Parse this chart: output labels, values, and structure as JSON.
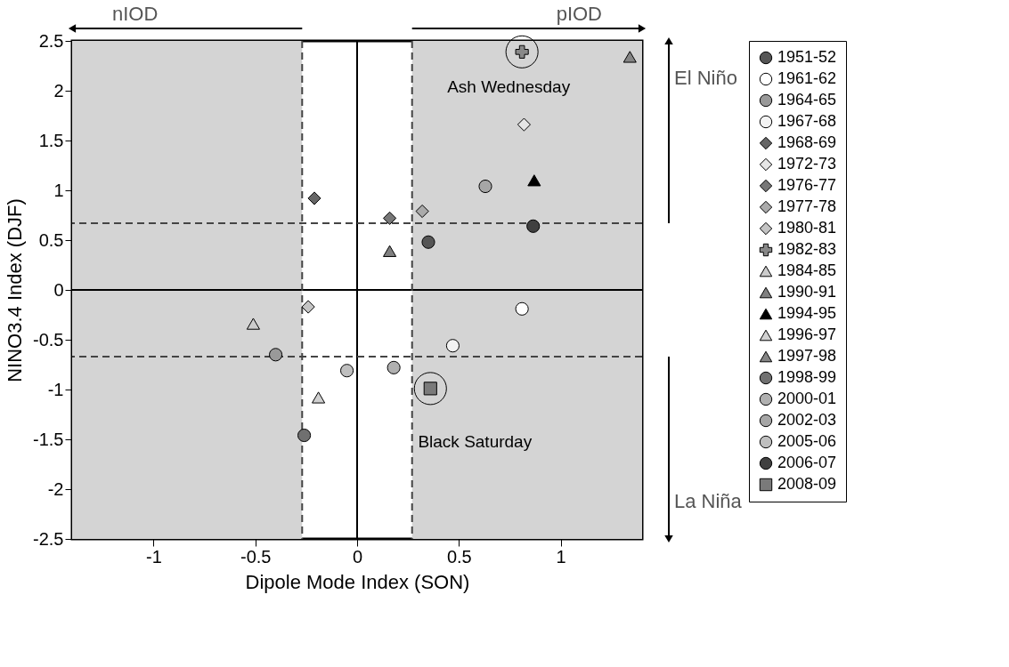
{
  "chart_data": {
    "type": "scatter",
    "xlabel": "Dipole Mode Index (SON)",
    "ylabel": "NINO3.4 Index (DJF)",
    "xlim": [
      -1.4,
      1.4
    ],
    "xticks": [
      -1,
      -0.5,
      0,
      0.5,
      1
    ],
    "ylim": [
      -2.5,
      2.5
    ],
    "yticks": [
      -2.5,
      -2,
      -1.5,
      -1,
      -0.5,
      0,
      0.5,
      1,
      1.5,
      2,
      2.5
    ],
    "grid": false,
    "legend": "right",
    "bands": [
      {
        "axis": "x",
        "from": -1.4,
        "to": -0.27,
        "color": "#d4d4d4"
      },
      {
        "axis": "x",
        "from": 0.27,
        "to": 1.4,
        "color": "#d4d4d4"
      }
    ],
    "ref_lines": [
      {
        "axis": "x",
        "value": 0,
        "color": "#000000",
        "line_style": "solid"
      },
      {
        "axis": "y",
        "value": 0,
        "color": "#000000",
        "line_style": "solid"
      },
      {
        "axis": "x",
        "value": -0.27,
        "color": "#444444",
        "line_style": "dashed"
      },
      {
        "axis": "x",
        "value": 0.27,
        "color": "#444444",
        "line_style": "dashed"
      },
      {
        "axis": "y",
        "value": 0.67,
        "color": "#444444",
        "line_style": "dashed"
      },
      {
        "axis": "y",
        "value": -0.67,
        "color": "#444444",
        "line_style": "dashed"
      }
    ],
    "annotations": [
      "nIOD",
      "pIOD",
      "El Niño",
      "La Niña",
      {
        "text": "Ash Wednesday",
        "x": 0.81,
        "y": 2.39
      },
      {
        "text": "Black Saturday",
        "x": 0.36,
        "y": -0.99
      }
    ],
    "series": [
      {
        "name": "1951-52",
        "color": "#555555",
        "marker": "circle",
        "x": [
          0.35
        ],
        "values": [
          0.48
        ]
      },
      {
        "name": "1961-62",
        "color": "#ffffff",
        "marker": "circle",
        "x": [
          0.81
        ],
        "values": [
          -0.19
        ]
      },
      {
        "name": "1964-65",
        "color": "#999999",
        "marker": "circle",
        "x": [
          -0.4
        ],
        "values": [
          -0.65
        ]
      },
      {
        "name": "1967-68",
        "color": "#f3f3f3",
        "marker": "circle",
        "x": [
          0.47
        ],
        "values": [
          -0.56
        ]
      },
      {
        "name": "1968-69",
        "color": "#666666",
        "marker": "diamond",
        "x": [
          -0.21
        ],
        "values": [
          0.92
        ]
      },
      {
        "name": "1972-73",
        "color": "#e6e6e6",
        "marker": "diamond",
        "x": [
          0.82
        ],
        "values": [
          1.66
        ]
      },
      {
        "name": "1976-77",
        "color": "#777777",
        "marker": "diamond",
        "x": [
          0.16
        ],
        "values": [
          0.72
        ]
      },
      {
        "name": "1977-78",
        "color": "#aaaaaa",
        "marker": "diamond",
        "x": [
          0.32
        ],
        "values": [
          0.79
        ]
      },
      {
        "name": "1980-81",
        "color": "#c4c4c4",
        "marker": "diamond",
        "x": [
          -0.24
        ],
        "values": [
          -0.17
        ]
      },
      {
        "name": "1982-83",
        "color": "#888888",
        "marker": "cross",
        "x": [
          0.81
        ],
        "values": [
          2.39
        ]
      },
      {
        "name": "1984-85",
        "color": "#cccccc",
        "marker": "triangle",
        "x": [
          -0.51
        ],
        "values": [
          -0.34
        ]
      },
      {
        "name": "1990-91",
        "color": "#808080",
        "marker": "triangle",
        "x": [
          0.16
        ],
        "values": [
          0.39
        ]
      },
      {
        "name": "1994-95",
        "color": "#000000",
        "marker": "triangle",
        "x": [
          0.87
        ],
        "values": [
          1.1
        ]
      },
      {
        "name": "1996-97",
        "color": "#d0d0d0",
        "marker": "triangle",
        "x": [
          -0.19
        ],
        "values": [
          -1.08
        ]
      },
      {
        "name": "1997-98",
        "color": "#858585",
        "marker": "triangle",
        "x": [
          1.34
        ],
        "values": [
          2.34
        ]
      },
      {
        "name": "1998-99",
        "color": "#707070",
        "marker": "circle",
        "x": [
          -0.26
        ],
        "values": [
          -1.46
        ]
      },
      {
        "name": "2000-01",
        "color": "#b0b0b0",
        "marker": "circle",
        "x": [
          0.18
        ],
        "values": [
          -0.78
        ]
      },
      {
        "name": "2002-03",
        "color": "#a6a6a6",
        "marker": "circle",
        "x": [
          0.63
        ],
        "values": [
          1.04
        ]
      },
      {
        "name": "2005-06",
        "color": "#bfbfbf",
        "marker": "circle",
        "x": [
          -0.05
        ],
        "values": [
          -0.81
        ]
      },
      {
        "name": "2006-07",
        "color": "#404040",
        "marker": "circle",
        "x": [
          0.865
        ],
        "values": [
          0.64
        ]
      },
      {
        "name": "2008-09",
        "color": "#7a7a7a",
        "marker": "square",
        "x": [
          0.36
        ],
        "values": [
          -0.99
        ]
      }
    ]
  }
}
